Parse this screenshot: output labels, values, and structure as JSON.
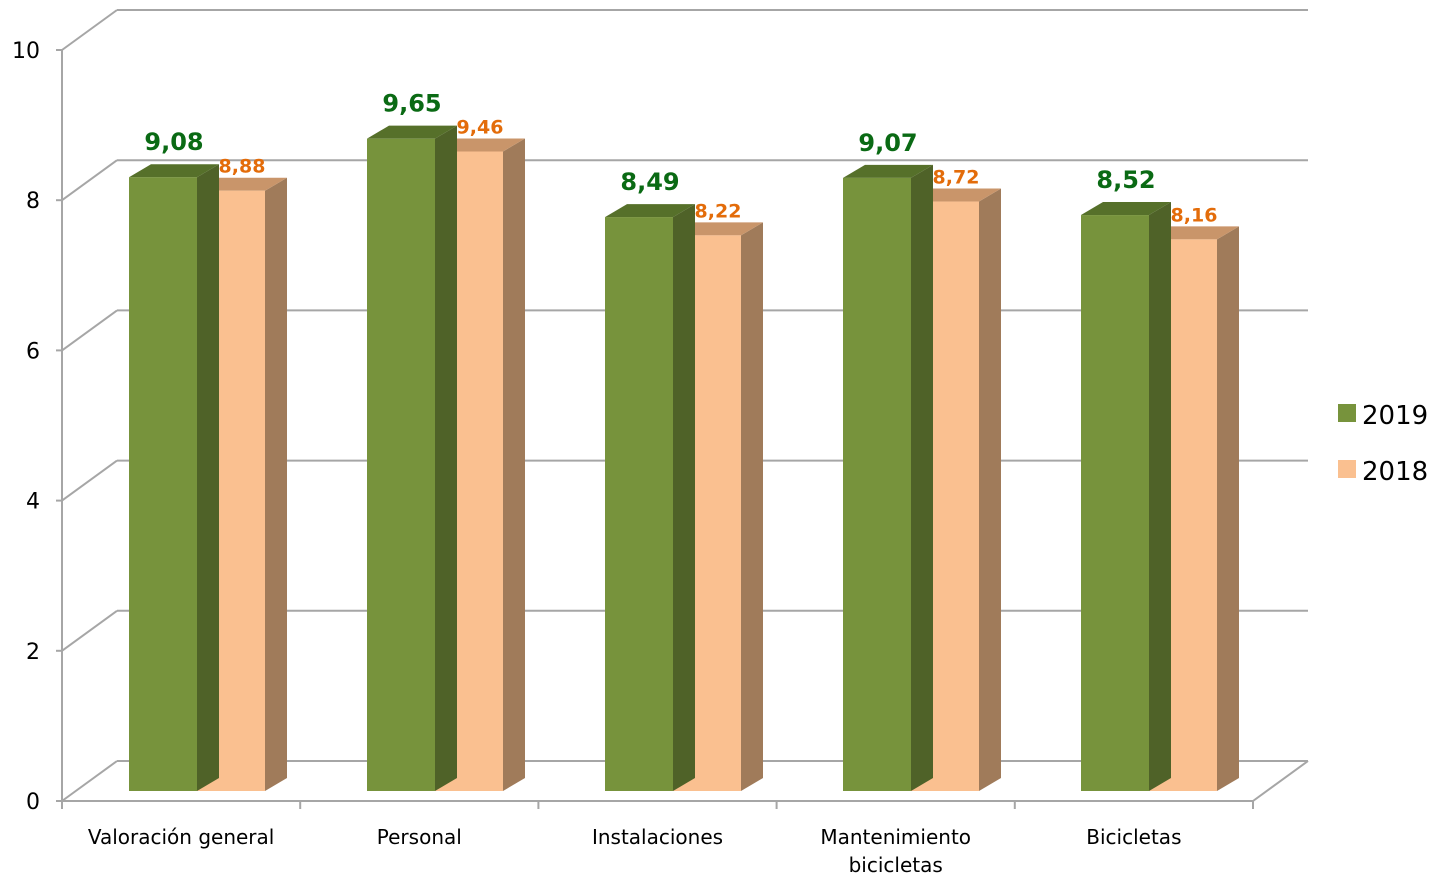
{
  "chart_data": {
    "type": "bar",
    "categories": [
      "Valoración general",
      "Personal",
      "Instalaciones",
      "Mantenimiento bicicletas",
      "Bicicletas"
    ],
    "category_lines": [
      [
        "Valoración general"
      ],
      [
        "Personal"
      ],
      [
        "Instalaciones"
      ],
      [
        "Mantenimiento",
        "bicicletas"
      ],
      [
        "Bicicletas"
      ]
    ],
    "series": [
      {
        "name": "2019",
        "values": [
          9.08,
          9.65,
          8.49,
          9.07,
          8.52
        ],
        "labels": [
          "9,08",
          "9,65",
          "8,49",
          "9,07",
          "8,52"
        ],
        "color": "#77933c"
      },
      {
        "name": "2018",
        "values": [
          8.88,
          9.46,
          8.22,
          8.72,
          8.16
        ],
        "labels": [
          "8,88",
          "9,46",
          "8,22",
          "8,72",
          "8,16"
        ],
        "color": "#fac090"
      }
    ],
    "ylim": [
      0,
      10
    ],
    "yticks": [
      0,
      2,
      4,
      6,
      8,
      10
    ],
    "grid": true,
    "legend": "right",
    "style": "3d-clustered-column"
  }
}
